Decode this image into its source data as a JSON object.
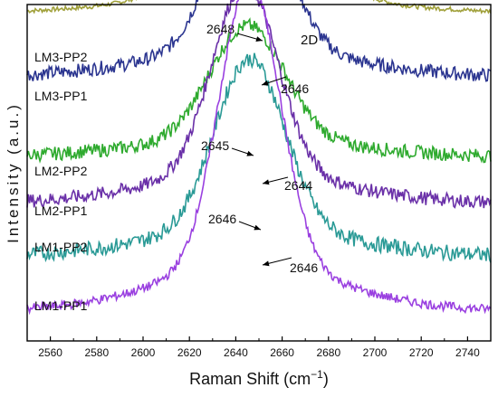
{
  "chart_data": {
    "type": "line",
    "title": "",
    "xlabel": "Raman Shift (cm",
    "xlabel_sup": "−1",
    "xlabel_close": ")",
    "ylabel": "Intensity (a.u.)",
    "xlim": [
      2550,
      2750
    ],
    "x_ticks": [
      "2560",
      "2580",
      "2600",
      "2620",
      "2640",
      "2660",
      "2680",
      "2700",
      "2720",
      "2740"
    ],
    "band_label": "2D",
    "series": [
      {
        "name": "LM3-PP2",
        "color": "#a0a03a",
        "baseline": 0.77,
        "amplitude": 0.27,
        "width": 22,
        "noise": 0.006,
        "peak_label": "2648",
        "peak_x": 2648
      },
      {
        "name": "LM3-PP1",
        "color": "#2b3590",
        "baseline": 0.61,
        "amplitude": 0.45,
        "width": 15,
        "noise": 0.018,
        "peak_label": "2646",
        "peak_x": 2646
      },
      {
        "name": "LM2-PP2",
        "color": "#2eaa2e",
        "baseline": 0.4,
        "amplitude": 0.3,
        "width": 16,
        "noise": 0.018,
        "peak_label": "2645",
        "peak_x": 2645
      },
      {
        "name": "LM2-PP1",
        "color": "#6a30a8",
        "baseline": 0.28,
        "amplitude": 0.5,
        "width": 14,
        "noise": 0.018,
        "peak_label": "2644",
        "peak_x": 2644
      },
      {
        "name": "LM1-PP2",
        "color": "#2a9a96",
        "baseline": 0.14,
        "amplitude": 0.45,
        "width": 15,
        "noise": 0.02,
        "peak_label": "2646",
        "peak_x": 2646
      },
      {
        "name": "LM1-PP1",
        "color": "#9a40e0",
        "baseline": 0.0,
        "amplitude": 0.75,
        "width": 13,
        "noise": 0.012,
        "peak_label": "2646",
        "peak_x": 2646
      }
    ]
  }
}
